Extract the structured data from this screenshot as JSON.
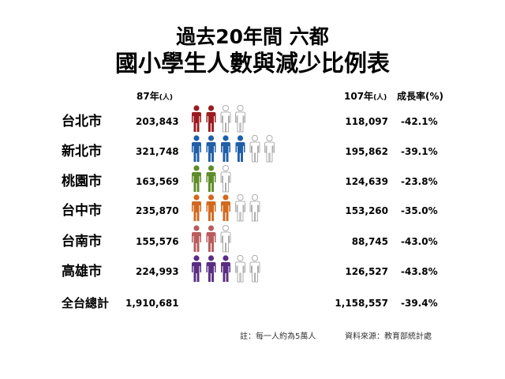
{
  "title_line1": "過去20年間  六都",
  "title_line2": "國小學生人數與減少比例表",
  "headers": {
    "old_year": "87年",
    "new_year": "107年",
    "unit": "(人)",
    "rate": "成長率(%)"
  },
  "chart_data": {
    "type": "table",
    "columns": [
      "87年(人)",
      "107年(人)",
      "成長率(%)"
    ],
    "rows": [
      {
        "city": "台北市",
        "students_87": "203,843",
        "students_107": "118,097",
        "rate": "-42.1%",
        "icons_107": 2,
        "icons_lost": 2,
        "color": "#9b1c1f"
      },
      {
        "city": "新北市",
        "students_87": "321,748",
        "students_107": "195,862",
        "rate": "-39.1%",
        "icons_107": 4,
        "icons_lost": 2,
        "color": "#1f5fa8"
      },
      {
        "city": "桃園市",
        "students_87": "163,569",
        "students_107": "124,639",
        "rate": "-23.8%",
        "icons_107": 2,
        "icons_lost": 1,
        "color": "#5e8c2a"
      },
      {
        "city": "台中市",
        "students_87": "235,870",
        "students_107": "153,260",
        "rate": "-35.0%",
        "icons_107": 3,
        "icons_lost": 2,
        "color": "#d2691e"
      },
      {
        "city": "台南市",
        "students_87": "155,576",
        "students_107": "88,745",
        "rate": "-43.0%",
        "icons_107": 2,
        "icons_lost": 1,
        "color": "#b85c5c"
      },
      {
        "city": "高雄市",
        "students_87": "224,993",
        "students_107": "126,527",
        "rate": "-43.8%",
        "icons_107": 3,
        "icons_lost": 2,
        "color": "#5b2d82"
      }
    ],
    "total": {
      "city": "全台總計",
      "students_87": "1,910,681",
      "students_107": "1,158,557",
      "rate": "-39.4%"
    }
  },
  "footnote_icon": "註：每一人約為5萬人",
  "footnote_source": "資料來源：教育部統計處"
}
